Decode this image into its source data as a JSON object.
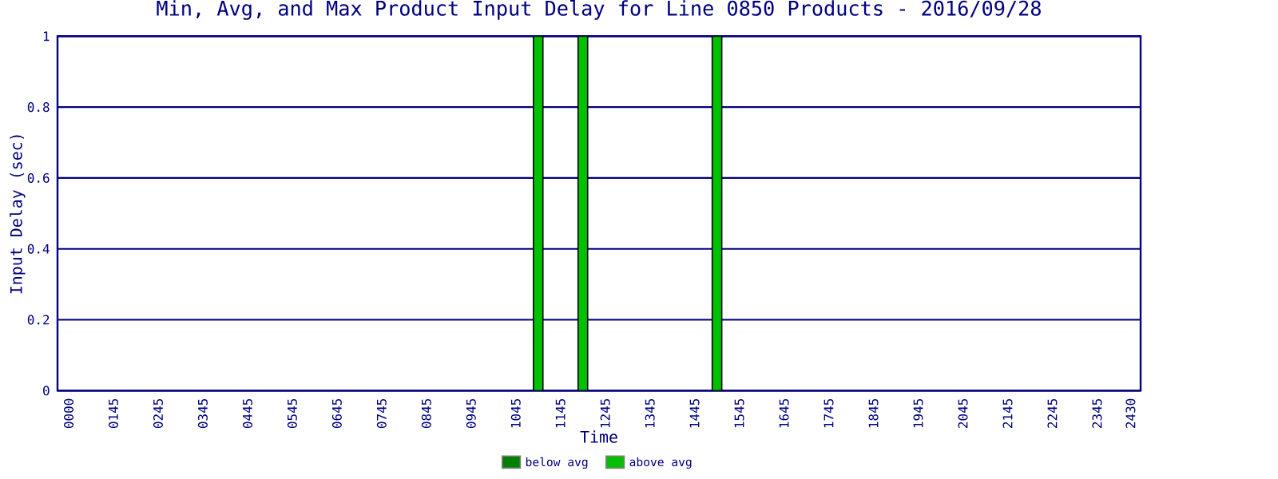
{
  "chart_data": {
    "type": "bar",
    "title": "Min, Avg, and Max Product Input Delay for Line 0850 Products - 2016/09/28",
    "xlabel": "Time",
    "ylabel": "Input Delay (sec)",
    "categories": [
      "0000",
      null,
      null,
      null,
      "0145",
      null,
      null,
      null,
      "0245",
      null,
      null,
      null,
      "0345",
      null,
      null,
      null,
      "0445",
      null,
      null,
      null,
      "0545",
      null,
      null,
      null,
      "0645",
      null,
      null,
      null,
      "0745",
      null,
      null,
      null,
      "0845",
      null,
      null,
      null,
      "0945",
      null,
      null,
      null,
      "1045",
      null,
      null,
      null,
      "1145",
      null,
      null,
      null,
      "1245",
      null,
      null,
      null,
      "1345",
      null,
      null,
      null,
      "1445",
      null,
      null,
      null,
      "1545",
      null,
      null,
      null,
      "1645",
      null,
      null,
      null,
      "1745",
      null,
      null,
      null,
      "1845",
      null,
      null,
      null,
      "1945",
      null,
      null,
      null,
      "2045",
      null,
      null,
      null,
      "2145",
      null,
      null,
      null,
      "2245",
      null,
      null,
      null,
      "2345",
      null,
      null,
      "2430"
    ],
    "series": [
      {
        "name": "below avg",
        "color": "#008000",
        "values": [
          null,
          null,
          null,
          null,
          null,
          null,
          null,
          null,
          null,
          null,
          null,
          null,
          null,
          null,
          null,
          null,
          null,
          null,
          null,
          null,
          null,
          null,
          null,
          null,
          null,
          null,
          null,
          null,
          null,
          null,
          null,
          null,
          null,
          null,
          null,
          null,
          null,
          null,
          null,
          null,
          null,
          null,
          0,
          null,
          null,
          null,
          0,
          null,
          null,
          null,
          null,
          null,
          null,
          null,
          null,
          null,
          null,
          null,
          0,
          null,
          null,
          null,
          null,
          null,
          null,
          null,
          null,
          null,
          null,
          null,
          null,
          null,
          null,
          null,
          null,
          null,
          null,
          null,
          null,
          null,
          null,
          null,
          null,
          null,
          null,
          null,
          null,
          null,
          null,
          null,
          null,
          null,
          null,
          null,
          null,
          null
        ]
      },
      {
        "name": "above avg",
        "color": "#00c000",
        "values": [
          null,
          null,
          null,
          null,
          null,
          null,
          null,
          null,
          null,
          null,
          null,
          null,
          null,
          null,
          null,
          null,
          null,
          null,
          null,
          null,
          null,
          null,
          null,
          null,
          null,
          null,
          null,
          null,
          null,
          null,
          null,
          null,
          null,
          null,
          null,
          null,
          null,
          null,
          null,
          null,
          null,
          null,
          1,
          null,
          null,
          null,
          1,
          null,
          null,
          null,
          null,
          null,
          null,
          null,
          null,
          null,
          null,
          null,
          1,
          null,
          null,
          null,
          null,
          null,
          null,
          null,
          null,
          null,
          null,
          null,
          null,
          null,
          null,
          null,
          null,
          null,
          null,
          null,
          null,
          null,
          null,
          null,
          null,
          null,
          null,
          null,
          null,
          null,
          null,
          null,
          null,
          null,
          null,
          null,
          null,
          null
        ]
      }
    ],
    "stacked": true,
    "ylim": [
      0,
      1
    ],
    "yticks": [
      0,
      0.2,
      0.4,
      0.6,
      0.8,
      1
    ],
    "grid": "y",
    "legend": "bottom"
  }
}
